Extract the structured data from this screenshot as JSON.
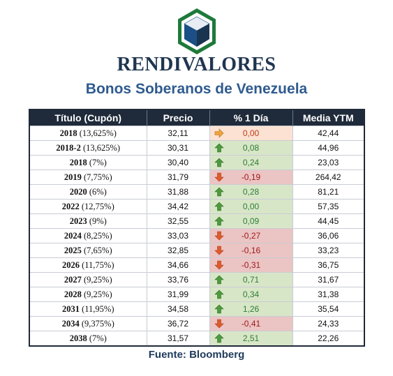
{
  "header": {
    "brand": "RENDIVALORES",
    "subtitle": "Bonos Soberanos de Venezuela"
  },
  "colors": {
    "logo_hex_border": "#1e7a3a",
    "logo_cube_top": "#e8edf3",
    "logo_cube_left": "#1c4f86",
    "logo_cube_right": "#18344f",
    "header_bg": "#1f2a3a",
    "up_bg": "#d8e6c8",
    "down_bg": "#ebc4c4",
    "flat_bg": "#fbe2d2"
  },
  "table": {
    "columns": [
      "Título (Cupón)",
      "Precio",
      "% 1 Día",
      "Media YTM"
    ],
    "rows": [
      {
        "year": "2018",
        "coupon": "(13,625%)",
        "price": "32,11",
        "change": "0,00",
        "dir": "flat",
        "ytm": "42,44"
      },
      {
        "year": "2018-2",
        "coupon": "(13,625%)",
        "price": "30,31",
        "change": "0,08",
        "dir": "up",
        "ytm": "44,96"
      },
      {
        "year": "2018",
        "coupon": "(7%)",
        "price": "30,40",
        "change": "0,24",
        "dir": "up",
        "ytm": "23,03"
      },
      {
        "year": "2019",
        "coupon": "(7,75%)",
        "price": "31,79",
        "change": "-0,19",
        "dir": "down",
        "ytm": "264,42"
      },
      {
        "year": "2020",
        "coupon": "(6%)",
        "price": "31,88",
        "change": "0,28",
        "dir": "up",
        "ytm": "81,21"
      },
      {
        "year": "2022",
        "coupon": "(12,75%)",
        "price": "34,42",
        "change": "0,00",
        "dir": "up",
        "ytm": "57,35"
      },
      {
        "year": "2023",
        "coupon": "(9%)",
        "price": "32,55",
        "change": "0,09",
        "dir": "up",
        "ytm": "44,45"
      },
      {
        "year": "2024",
        "coupon": "(8,25%)",
        "price": "33,03",
        "change": "-0,27",
        "dir": "down",
        "ytm": "36,06"
      },
      {
        "year": "2025",
        "coupon": "(7,65%)",
        "price": "32,85",
        "change": "-0,16",
        "dir": "down",
        "ytm": "33,23"
      },
      {
        "year": "2026",
        "coupon": "(11,75%)",
        "price": "34,66",
        "change": "-0,31",
        "dir": "down",
        "ytm": "36,75"
      },
      {
        "year": "2027",
        "coupon": "(9,25%)",
        "price": "33,76",
        "change": "0,71",
        "dir": "up",
        "ytm": "31,67"
      },
      {
        "year": "2028",
        "coupon": "(9,25%)",
        "price": "31,99",
        "change": "0,34",
        "dir": "up",
        "ytm": "31,38"
      },
      {
        "year": "2031",
        "coupon": "(11,95%)",
        "price": "34,58",
        "change": "1,26",
        "dir": "up",
        "ytm": "35,54"
      },
      {
        "year": "2034",
        "coupon": "(9,375%)",
        "price": "36,72",
        "change": "-0,41",
        "dir": "down",
        "ytm": "24,33"
      },
      {
        "year": "2038",
        "coupon": "(7%)",
        "price": "31,57",
        "change": "2,51",
        "dir": "up",
        "ytm": "22,26"
      }
    ]
  },
  "footer": {
    "source": "Fuente: Bloomberg"
  }
}
